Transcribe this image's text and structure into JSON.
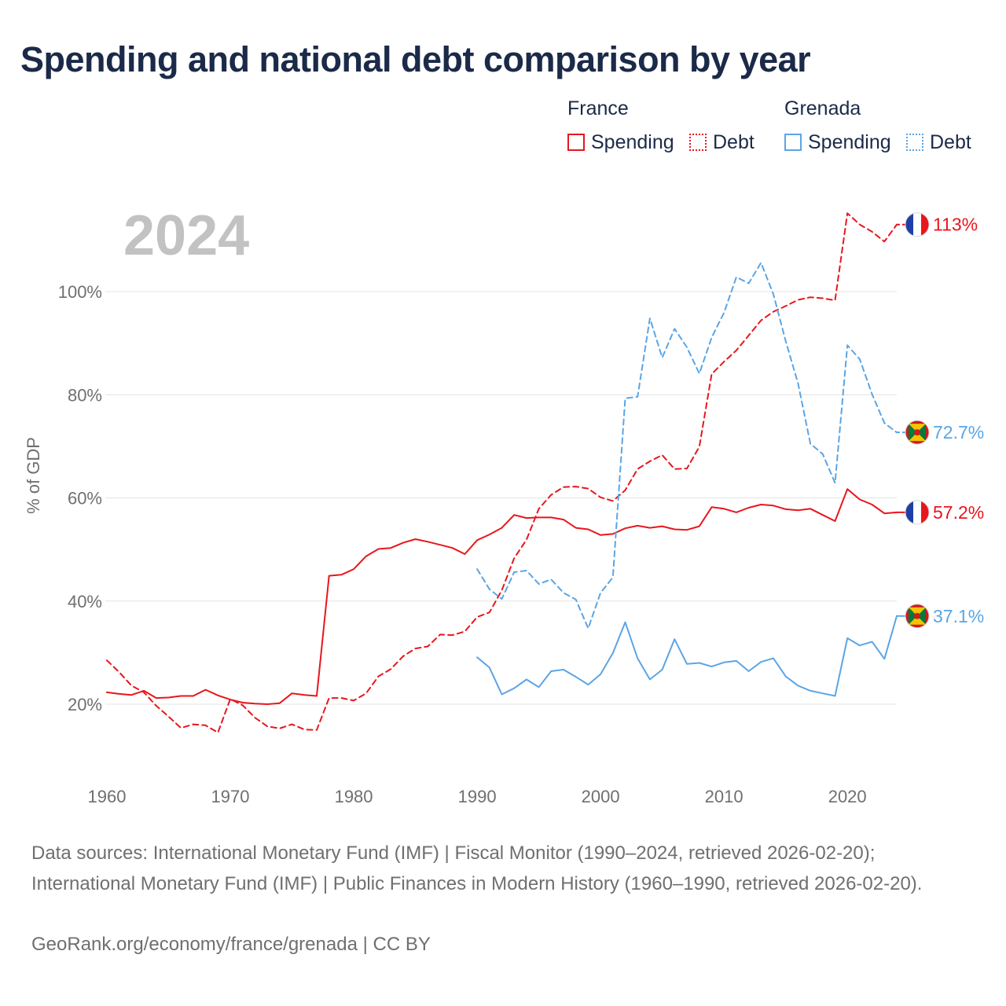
{
  "title": "Spending and national debt comparison by year",
  "legend": {
    "groups": [
      {
        "country": "France",
        "spending_label": "Spending",
        "debt_label": "Debt",
        "color": "#e8161c"
      },
      {
        "country": "Grenada",
        "spending_label": "Spending",
        "debt_label": "Debt",
        "color": "#5aa5e6"
      }
    ]
  },
  "footer": {
    "sources": "Data sources: International Monetary Fund (IMF) | Fiscal Monitor (1990–2024, retrieved 2026-02-20); International Monetary Fund (IMF) | Public Finances in Modern History (1960–1990, retrieved 2026-02-20).",
    "credit": "GeoRank.org/economy/france/grenada | CC BY"
  },
  "chart_data": {
    "type": "line",
    "year_label": "2024",
    "ylabel": "% of GDP",
    "xlabel": "",
    "xlim": [
      1960,
      2024
    ],
    "ylim": [
      5,
      118
    ],
    "x_ticks": [
      1960,
      1970,
      1980,
      1990,
      2000,
      2010,
      2020
    ],
    "y_ticks": [
      20,
      40,
      60,
      80,
      100
    ],
    "y_tick_labels": [
      "20%",
      "40%",
      "60%",
      "80%",
      "100%"
    ],
    "grid": true,
    "series": [
      {
        "name": "France Spending",
        "country": "France",
        "metric": "Spending",
        "color": "#e8161c",
        "dash": "solid",
        "start": 1960,
        "end_label": "57.2%",
        "values": [
          22.3,
          22.0,
          21.8,
          22.6,
          21.2,
          21.3,
          21.6,
          21.6,
          22.8,
          21.7,
          20.9,
          20.3,
          20.1,
          20.0,
          20.2,
          22.1,
          21.8,
          21.6,
          44.9,
          45.1,
          46.2,
          48.7,
          50.1,
          50.3,
          51.3,
          52.0,
          51.5,
          50.9,
          50.3,
          49.1,
          51.8,
          52.9,
          54.2,
          56.7,
          56.1,
          56.2,
          56.2,
          55.8,
          54.2,
          53.9,
          52.8,
          53.0,
          54.1,
          54.6,
          54.2,
          54.5,
          53.9,
          53.8,
          54.5,
          58.2,
          57.9,
          57.2,
          58.1,
          58.7,
          58.5,
          57.8,
          57.6,
          57.9,
          56.7,
          55.5,
          61.7,
          59.7,
          58.7,
          57.0,
          57.2
        ]
      },
      {
        "name": "France Debt",
        "country": "France",
        "metric": "Debt",
        "color": "#e8161c",
        "dash": "dashed",
        "start": 1960,
        "end_label": "113%",
        "values": [
          28.5,
          26.2,
          23.6,
          22.3,
          19.7,
          17.6,
          15.4,
          16.1,
          15.9,
          14.5,
          21.0,
          19.8,
          17.4,
          15.7,
          15.3,
          16.1,
          15.1,
          15.0,
          21.2,
          21.2,
          20.7,
          22.1,
          25.4,
          26.8,
          29.3,
          30.8,
          31.2,
          33.5,
          33.4,
          34.1,
          36.9,
          37.8,
          42.1,
          48.3,
          51.9,
          57.9,
          60.6,
          62.1,
          62.2,
          61.8,
          60.1,
          59.4,
          61.5,
          65.6,
          67.1,
          68.3,
          65.6,
          65.7,
          69.9,
          84.0,
          86.4,
          88.6,
          91.5,
          94.4,
          96.1,
          97.2,
          98.4,
          98.9,
          98.7,
          98.3,
          115.2,
          113.0,
          111.6,
          109.7,
          113.0
        ]
      },
      {
        "name": "Grenada Spending",
        "country": "Grenada",
        "metric": "Spending",
        "color": "#5aa5e6",
        "dash": "solid",
        "start": 1990,
        "end_label": "37.1%",
        "values": [
          29.1,
          27.1,
          21.9,
          23.1,
          24.8,
          23.3,
          26.4,
          26.7,
          25.3,
          23.8,
          25.8,
          29.9,
          35.9,
          28.9,
          24.8,
          26.7,
          32.6,
          27.8,
          28.0,
          27.3,
          28.1,
          28.4,
          26.4,
          28.2,
          28.9,
          25.4,
          23.6,
          22.6,
          22.1,
          21.6,
          32.8,
          31.4,
          32.1,
          28.8,
          37.1
        ]
      },
      {
        "name": "Grenada Debt",
        "country": "Grenada",
        "metric": "Debt",
        "color": "#5aa5e6",
        "dash": "dashed",
        "start": 1990,
        "end_label": "72.7%",
        "values": [
          46.2,
          42.3,
          40.4,
          45.6,
          45.9,
          43.3,
          44.2,
          41.6,
          40.3,
          34.7,
          41.6,
          44.6,
          79.3,
          79.6,
          94.8,
          87.2,
          92.8,
          89.2,
          84.1,
          91.1,
          95.9,
          102.8,
          101.6,
          105.6,
          99.5,
          90.4,
          82.2,
          70.5,
          68.5,
          62.9,
          89.6,
          86.9,
          80.1,
          74.5,
          72.7
        ]
      }
    ]
  }
}
